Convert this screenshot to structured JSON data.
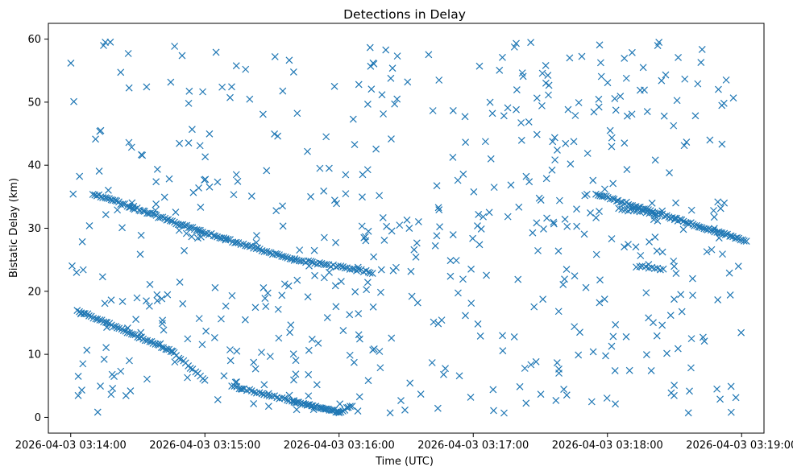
{
  "chart_data": {
    "type": "scatter",
    "title": "Detections in Delay",
    "xlabel": "Time (UTC)",
    "ylabel": "Bistatic Delay (km)",
    "x_axis_kind": "time",
    "xlim": [
      "2026-04-03 03:13:50",
      "2026-04-03 03:19:10"
    ],
    "ylim": [
      -2.5,
      62.5
    ],
    "x_ticks": [
      "2026-04-03 03:14:00",
      "2026-04-03 03:15:00",
      "2026-04-03 03:16:00",
      "2026-04-03 03:17:00",
      "2026-04-03 03:18:00",
      "2026-04-03 03:19:00"
    ],
    "y_ticks": [
      0,
      10,
      20,
      30,
      40,
      50,
      60
    ],
    "marker": "x",
    "grid": false,
    "color": "#1f77b4",
    "series": [
      {
        "tracks": [
          {
            "from": [
              "2026-04-03 03:14:10",
              35.5
            ],
            "to": [
              "2026-04-03 03:14:58",
              29.5
            ],
            "points": 55
          },
          {
            "from": [
              "2026-04-03 03:14:58",
              29.5
            ],
            "to": [
              "2026-04-03 03:15:40",
              25.0
            ],
            "points": 45
          },
          {
            "from": [
              "2026-04-03 03:15:40",
              25.0
            ],
            "to": [
              "2026-04-03 03:16:15",
              23.0
            ],
            "points": 35
          },
          {
            "from": [
              "2026-04-03 03:17:55",
              35.5
            ],
            "to": [
              "2026-04-03 03:18:30",
              31.5
            ],
            "points": 40
          },
          {
            "from": [
              "2026-04-03 03:18:30",
              31.5
            ],
            "to": [
              "2026-04-03 03:19:02",
              28.0
            ],
            "points": 40
          },
          {
            "from": [
              "2026-04-03 03:14:03",
              17.0
            ],
            "to": [
              "2026-04-03 03:14:45",
              10.5
            ],
            "points": 48
          },
          {
            "from": [
              "2026-04-03 03:14:45",
              10.5
            ],
            "to": [
              "2026-04-03 03:15:00",
              6.0
            ],
            "points": 15
          },
          {
            "from": [
              "2026-04-03 03:15:12",
              5.0
            ],
            "to": [
              "2026-04-03 03:15:40",
              2.5
            ],
            "points": 26
          },
          {
            "from": [
              "2026-04-03 03:15:40",
              2.5
            ],
            "to": [
              "2026-04-03 03:16:00",
              0.8
            ],
            "points": 30
          },
          {
            "from": [
              "2026-04-03 03:16:00",
              0.8
            ],
            "to": [
              "2026-04-03 03:16:06",
              1.8
            ],
            "points": 8
          },
          {
            "from": [
              "2026-04-03 03:18:05",
              33.0
            ],
            "to": [
              "2026-04-03 03:18:20",
              32.5
            ],
            "points": 12
          },
          {
            "from": [
              "2026-04-03 03:18:13",
              24.0
            ],
            "to": [
              "2026-04-03 03:18:25",
              23.5
            ],
            "points": 10
          }
        ],
        "scattered_points": 560,
        "scattered_x_range": [
          "2026-04-03 03:14:00",
          "2026-04-03 03:19:00"
        ],
        "scattered_y_range": [
          0.5,
          60
        ]
      }
    ]
  }
}
